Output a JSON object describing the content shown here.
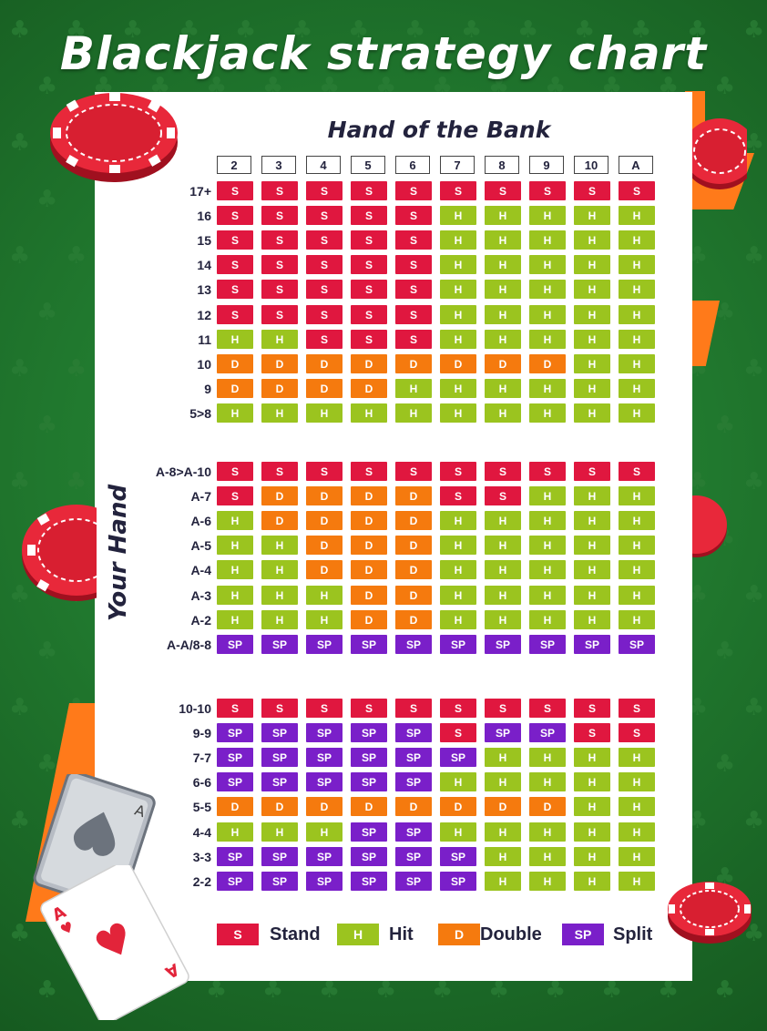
{
  "title": "Blackjack strategy chart",
  "bank_title": "Hand of the Bank",
  "your_hand_label": "Your Hand",
  "colors": {
    "S": "#e0173f",
    "H": "#9bc41f",
    "D": "#f57a0e",
    "SP": "#7a1fc9",
    "felt": "#217a2f",
    "orange_deco": "#ff7a1a"
  },
  "dealer_cards": [
    "2",
    "3",
    "4",
    "5",
    "6",
    "7",
    "8",
    "9",
    "10",
    "A"
  ],
  "sections": [
    {
      "rows": [
        {
          "label": "17+",
          "cells": [
            "S",
            "S",
            "S",
            "S",
            "S",
            "S",
            "S",
            "S",
            "S",
            "S"
          ]
        },
        {
          "label": "16",
          "cells": [
            "S",
            "S",
            "S",
            "S",
            "S",
            "H",
            "H",
            "H",
            "H",
            "H"
          ]
        },
        {
          "label": "15",
          "cells": [
            "S",
            "S",
            "S",
            "S",
            "S",
            "H",
            "H",
            "H",
            "H",
            "H"
          ]
        },
        {
          "label": "14",
          "cells": [
            "S",
            "S",
            "S",
            "S",
            "S",
            "H",
            "H",
            "H",
            "H",
            "H"
          ]
        },
        {
          "label": "13",
          "cells": [
            "S",
            "S",
            "S",
            "S",
            "S",
            "H",
            "H",
            "H",
            "H",
            "H"
          ]
        },
        {
          "label": "12",
          "cells": [
            "S",
            "S",
            "S",
            "S",
            "S",
            "H",
            "H",
            "H",
            "H",
            "H"
          ]
        },
        {
          "label": "11",
          "cells": [
            "H",
            "H",
            "S",
            "S",
            "S",
            "H",
            "H",
            "H",
            "H",
            "H"
          ]
        },
        {
          "label": "10",
          "cells": [
            "D",
            "D",
            "D",
            "D",
            "D",
            "D",
            "D",
            "D",
            "H",
            "H"
          ]
        },
        {
          "label": "9",
          "cells": [
            "D",
            "D",
            "D",
            "D",
            "H",
            "H",
            "H",
            "H",
            "H",
            "H"
          ]
        },
        {
          "label": "5>8",
          "cells": [
            "H",
            "H",
            "H",
            "H",
            "H",
            "H",
            "H",
            "H",
            "H",
            "H"
          ]
        }
      ]
    },
    {
      "rows": [
        {
          "label": "A-8>A-10",
          "cells": [
            "S",
            "S",
            "S",
            "S",
            "S",
            "S",
            "S",
            "S",
            "S",
            "S"
          ]
        },
        {
          "label": "A-7",
          "cells": [
            "S",
            "D",
            "D",
            "D",
            "D",
            "S",
            "S",
            "H",
            "H",
            "H"
          ]
        },
        {
          "label": "A-6",
          "cells": [
            "H",
            "D",
            "D",
            "D",
            "D",
            "H",
            "H",
            "H",
            "H",
            "H"
          ]
        },
        {
          "label": "A-5",
          "cells": [
            "H",
            "H",
            "D",
            "D",
            "D",
            "H",
            "H",
            "H",
            "H",
            "H"
          ]
        },
        {
          "label": "A-4",
          "cells": [
            "H",
            "H",
            "D",
            "D",
            "D",
            "H",
            "H",
            "H",
            "H",
            "H"
          ]
        },
        {
          "label": "A-3",
          "cells": [
            "H",
            "H",
            "H",
            "D",
            "D",
            "H",
            "H",
            "H",
            "H",
            "H"
          ]
        },
        {
          "label": "A-2",
          "cells": [
            "H",
            "H",
            "H",
            "D",
            "D",
            "H",
            "H",
            "H",
            "H",
            "H"
          ]
        },
        {
          "label": "A-A/8-8",
          "cells": [
            "SP",
            "SP",
            "SP",
            "SP",
            "SP",
            "SP",
            "SP",
            "SP",
            "SP",
            "SP"
          ]
        }
      ]
    },
    {
      "rows": [
        {
          "label": "10-10",
          "cells": [
            "S",
            "S",
            "S",
            "S",
            "S",
            "S",
            "S",
            "S",
            "S",
            "S"
          ]
        },
        {
          "label": "9-9",
          "cells": [
            "SP",
            "SP",
            "SP",
            "SP",
            "SP",
            "S",
            "SP",
            "SP",
            "S",
            "S"
          ]
        },
        {
          "label": "7-7",
          "cells": [
            "SP",
            "SP",
            "SP",
            "SP",
            "SP",
            "SP",
            "H",
            "H",
            "H",
            "H"
          ]
        },
        {
          "label": "6-6",
          "cells": [
            "SP",
            "SP",
            "SP",
            "SP",
            "SP",
            "H",
            "H",
            "H",
            "H",
            "H"
          ]
        },
        {
          "label": "5-5",
          "cells": [
            "D",
            "D",
            "D",
            "D",
            "D",
            "D",
            "D",
            "D",
            "H",
            "H"
          ]
        },
        {
          "label": "4-4",
          "cells": [
            "H",
            "H",
            "H",
            "SP",
            "SP",
            "H",
            "H",
            "H",
            "H",
            "H"
          ]
        },
        {
          "label": "3-3",
          "cells": [
            "SP",
            "SP",
            "SP",
            "SP",
            "SP",
            "SP",
            "H",
            "H",
            "H",
            "H"
          ]
        },
        {
          "label": "2-2",
          "cells": [
            "SP",
            "SP",
            "SP",
            "SP",
            "SP",
            "SP",
            "H",
            "H",
            "H",
            "H"
          ]
        }
      ]
    }
  ],
  "legend": [
    {
      "code": "S",
      "label": "Stand"
    },
    {
      "code": "H",
      "label": "Hit"
    },
    {
      "code": "D",
      "label": "Double"
    },
    {
      "code": "SP",
      "label": "Split"
    }
  ],
  "decorations": {
    "chips": [
      "poker-chip-icon",
      "poker-chip-icon",
      "poker-chip-icon",
      "poker-chip-icon",
      "poker-chip-icon"
    ],
    "cards": [
      "ace-of-spades-card-icon",
      "ace-of-hearts-card-icon"
    ],
    "pattern": "club-suit-icon"
  }
}
